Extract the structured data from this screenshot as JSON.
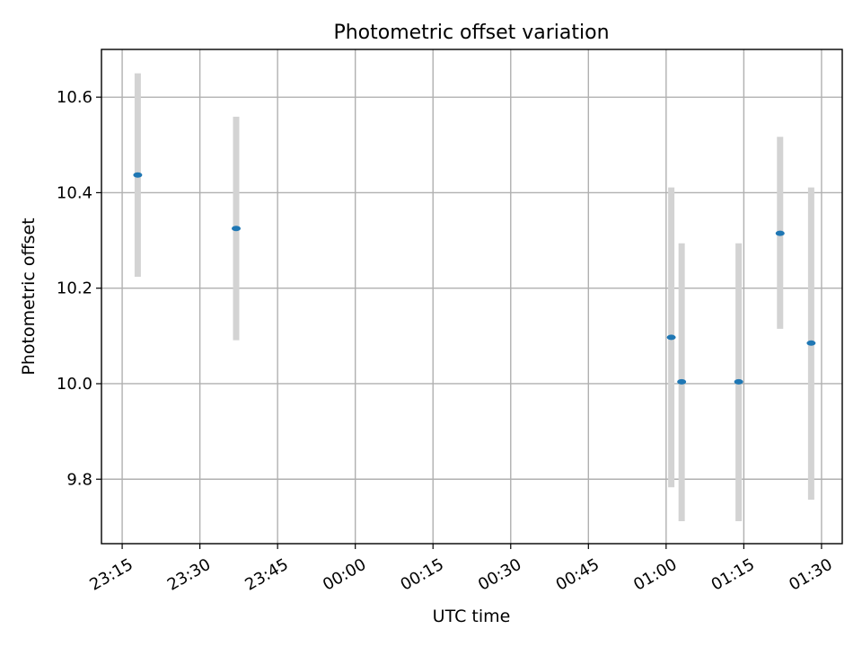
{
  "chart_data": {
    "type": "scatter",
    "title": "Photometric offset variation",
    "xlabel": "UTC time",
    "ylabel": "Photometric offset",
    "x_ticks": [
      "23:15",
      "23:30",
      "23:45",
      "00:00",
      "00:15",
      "00:30",
      "00:45",
      "01:00",
      "01:15",
      "01:30"
    ],
    "y_ticks": [
      "9.8",
      "10.0",
      "10.2",
      "10.4",
      "10.6"
    ],
    "xlim": [
      "23:11",
      "01:34"
    ],
    "ylim": [
      9.665,
      10.7
    ],
    "grid": true,
    "series": [
      {
        "x": [
          "23:18",
          "23:37",
          "01:01",
          "01:03",
          "01:14",
          "01:22",
          "01:28"
        ],
        "y": [
          10.437,
          10.325,
          10.097,
          10.004,
          10.004,
          10.315,
          10.085
        ],
        "err_low": [
          10.224,
          10.091,
          9.783,
          9.712,
          9.712,
          10.115,
          9.757
        ],
        "err_high": [
          10.65,
          10.559,
          10.411,
          10.294,
          10.294,
          10.517,
          10.411
        ]
      }
    ]
  },
  "colors": {
    "point": "#1f77b4",
    "errorbar": "#d3d3d3"
  }
}
